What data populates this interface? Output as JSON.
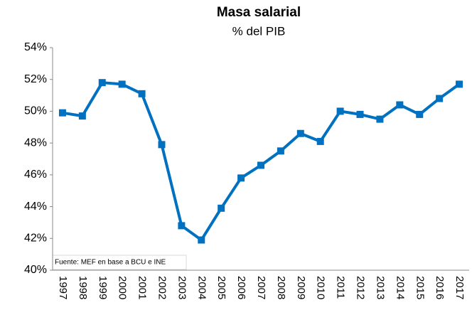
{
  "chart_data": {
    "type": "line",
    "title": "Masa salarial",
    "subtitle": "% del PIB",
    "annotation": "Fuente: MEF en base a BCU e INE",
    "categories": [
      "1997",
      "1998",
      "1999",
      "2000",
      "2001",
      "2002",
      "2003",
      "2004",
      "2005",
      "2006",
      "2007",
      "2008",
      "2009",
      "2010",
      "2011",
      "2012",
      "2013",
      "2014",
      "2015",
      "2016",
      "2017"
    ],
    "series": [
      {
        "name": "Masa salarial",
        "color": "#0070c0",
        "values": [
          49.9,
          49.7,
          51.8,
          51.7,
          51.1,
          47.9,
          42.8,
          41.9,
          43.9,
          45.8,
          46.6,
          47.5,
          48.6,
          48.1,
          50.0,
          49.8,
          49.5,
          50.4,
          49.8,
          50.8,
          51.7
        ]
      }
    ],
    "ylim": [
      40,
      54
    ],
    "yticks": [
      {
        "value": 40,
        "label": "40%"
      },
      {
        "value": 42,
        "label": "42%"
      },
      {
        "value": 44,
        "label": "44%"
      },
      {
        "value": 46,
        "label": "46%"
      },
      {
        "value": 48,
        "label": "48%"
      },
      {
        "value": 50,
        "label": "50%"
      },
      {
        "value": 52,
        "label": "52%"
      },
      {
        "value": 54,
        "label": "54%"
      }
    ],
    "grid": false
  }
}
